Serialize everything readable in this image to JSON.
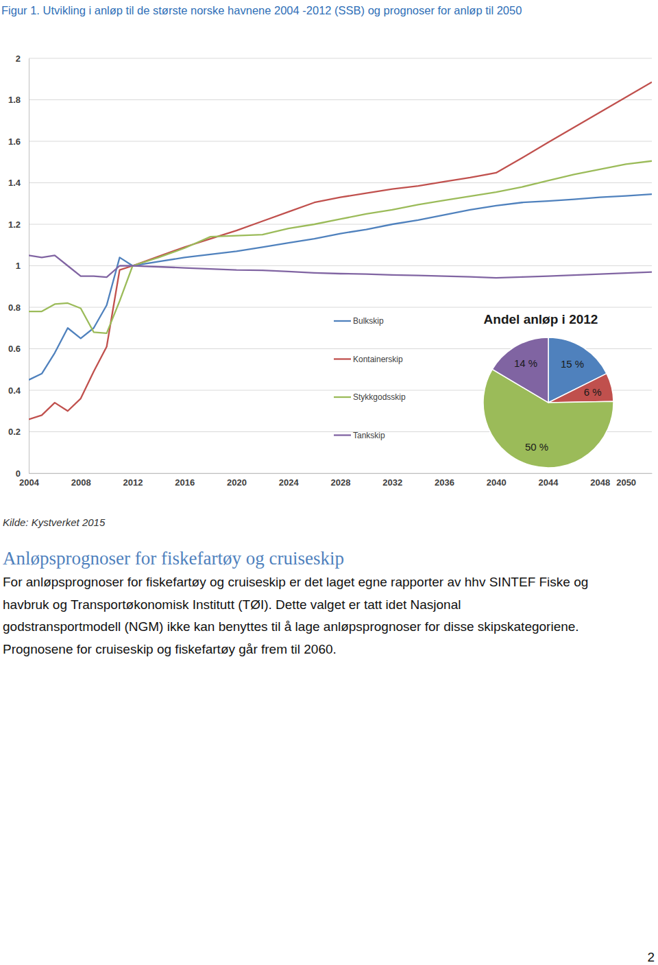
{
  "chart_data": [
    {
      "type": "line",
      "title": "Figur 1. Utvikling i anløp til de største norske havnene 2004 -2012 (SSB) og prognoser for anløp til 2050",
      "x": [
        2004,
        2005,
        2006,
        2007,
        2008,
        2009,
        2010,
        2011,
        2012,
        2014,
        2016,
        2018,
        2020,
        2022,
        2024,
        2026,
        2028,
        2030,
        2032,
        2034,
        2036,
        2038,
        2040,
        2042,
        2044,
        2046,
        2048,
        2050,
        2052
      ],
      "series": [
        {
          "name": "Bulkskip",
          "color": "#4f81bd",
          "values": [
            0.45,
            0.48,
            0.58,
            0.7,
            0.65,
            0.7,
            0.81,
            1.04,
            1.0,
            1.02,
            1.04,
            1.055,
            1.07,
            1.09,
            1.11,
            1.13,
            1.155,
            1.175,
            1.2,
            1.22,
            1.245,
            1.27,
            1.29,
            1.305,
            1.312,
            1.32,
            1.33,
            1.337,
            1.345
          ]
        },
        {
          "name": "Kontainerskip",
          "color": "#c0504d",
          "values": [
            0.26,
            0.28,
            0.34,
            0.3,
            0.36,
            0.49,
            0.61,
            0.98,
            1.0,
            1.045,
            1.09,
            1.13,
            1.17,
            1.215,
            1.26,
            1.305,
            1.33,
            1.35,
            1.37,
            1.385,
            1.405,
            1.425,
            1.448,
            1.52,
            1.594,
            1.667,
            1.74,
            1.812,
            1.885
          ]
        },
        {
          "name": "Stykkgodsskip",
          "color": "#9bbb59",
          "values": [
            0.78,
            0.78,
            0.815,
            0.82,
            0.795,
            0.68,
            0.675,
            0.83,
            1.0,
            1.04,
            1.085,
            1.14,
            1.145,
            1.15,
            1.18,
            1.2,
            1.225,
            1.25,
            1.27,
            1.295,
            1.315,
            1.335,
            1.355,
            1.38,
            1.41,
            1.44,
            1.465,
            1.49,
            1.505
          ]
        },
        {
          "name": "Tankskip",
          "color": "#8064a2",
          "values": [
            1.05,
            1.04,
            1.05,
            1.0,
            0.95,
            0.95,
            0.945,
            1.0,
            1.0,
            0.995,
            0.99,
            0.985,
            0.98,
            0.978,
            0.972,
            0.966,
            0.962,
            0.96,
            0.956,
            0.953,
            0.95,
            0.947,
            0.942,
            0.946,
            0.95,
            0.955,
            0.96,
            0.965,
            0.97
          ]
        }
      ],
      "xlim": [
        2004,
        2052
      ],
      "xticks": [
        2004,
        2008,
        2012,
        2016,
        2020,
        2024,
        2028,
        2032,
        2036,
        2040,
        2044,
        2048,
        2050
      ],
      "ylim": [
        0,
        2
      ],
      "yticks": [
        0,
        0.2,
        0.4,
        0.6,
        0.8,
        1,
        1.2,
        1.4,
        1.6,
        1.8,
        2
      ],
      "grid": true,
      "legend": "bottom"
    },
    {
      "type": "pie",
      "title": "Andel anløp i 2012",
      "values": [
        15,
        6,
        50,
        14
      ],
      "value_labels": [
        "15 %",
        "6 %",
        "50 %",
        "14 %"
      ],
      "colors": [
        "#4f81bd",
        "#c0504d",
        "#9bbb59",
        "#8064a2"
      ],
      "data_labels": true
    }
  ],
  "document": {
    "source": "Kilde: Kystverket 2015",
    "heading": "Anløpsprognoser for fiskefartøy og cruiseskip",
    "paragraph_lines": [
      "For anløpsprognoser for fiskefartøy og cruiseskip er det laget egne rapporter av hhv SINTEF Fiske og",
      "havbruk og Transportøkonomisk Institutt (TØI). Dette valget er tatt idet Nasjonal",
      "godstransportmodell (NGM) ikke kan benyttes til å lage anløpsprognoser for disse skipskategoriene.",
      "Prognosene for cruiseskip og fiskefartøy går frem til 2060."
    ],
    "page_number": "2"
  }
}
